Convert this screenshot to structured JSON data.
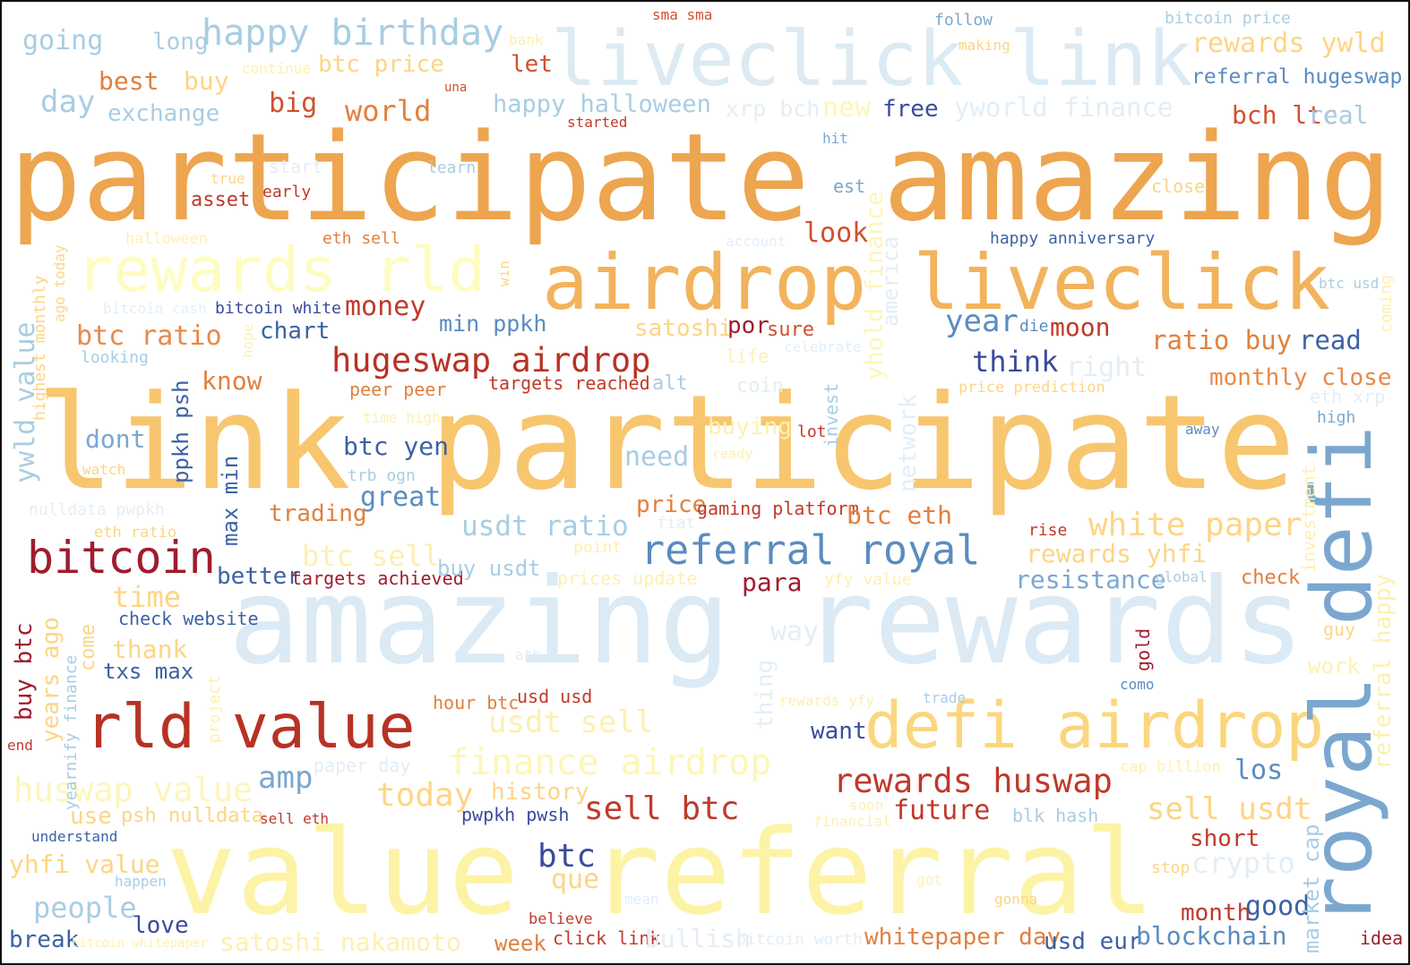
{
  "words": [
    {
      "text": "participate amazing",
      "color": "#eda54f"
    },
    {
      "text": "link participate",
      "color": "#f7c66e"
    },
    {
      "text": "amazing rewards",
      "color": "#dbeaf4"
    },
    {
      "text": "value referral",
      "color": "#fdf3a6"
    },
    {
      "text": "airdrop liveclick",
      "color": "#f2b35c"
    },
    {
      "text": "liveclick link",
      "color": "#dceaf3"
    },
    {
      "text": "rewards rld",
      "color": "#fefcc0"
    },
    {
      "text": "defi airdrop",
      "color": "#fbd67e"
    },
    {
      "text": "royal defi",
      "color": "#7ba7cf"
    },
    {
      "text": "rld value",
      "color": "#b83224"
    },
    {
      "text": "bitcoin",
      "color": "#a01c2c"
    },
    {
      "text": "hugeswap airdrop",
      "color": "#b83224"
    },
    {
      "text": "referral royal",
      "color": "#5a8cc0"
    },
    {
      "text": "rewards huswap",
      "color": "#c0392b"
    },
    {
      "text": "happy birthday",
      "color": "#a8cde3"
    },
    {
      "text": "finance airdrop",
      "color": "#fdf6b8"
    },
    {
      "text": "huswap value",
      "color": "#fdf6b8"
    },
    {
      "text": "usdt ratio",
      "color": "#a8cde3"
    },
    {
      "text": "white paper",
      "color": "#fcd585"
    },
    {
      "text": "btc ratio",
      "color": "#e58a4a"
    },
    {
      "text": "monthly close",
      "color": "#e58a4a"
    },
    {
      "text": "ratio buy",
      "color": "#e0803f"
    },
    {
      "text": "read",
      "color": "#3b62a5"
    },
    {
      "text": "rewards ywld",
      "color": "#fcd585"
    },
    {
      "text": "referral hugeswap",
      "color": "#5a8cc0"
    },
    {
      "text": "yworld finance",
      "color": "#e3eef7"
    },
    {
      "text": "going",
      "color": "#a8cde3"
    },
    {
      "text": "long",
      "color": "#a8cde3"
    },
    {
      "text": "best",
      "color": "#e0803f"
    },
    {
      "text": "buy",
      "color": "#fcd585"
    },
    {
      "text": "btc price",
      "color": "#fcd585"
    },
    {
      "text": "let",
      "color": "#d0502f"
    },
    {
      "text": "day",
      "color": "#a8cde3"
    },
    {
      "text": "exchange",
      "color": "#a8cde3"
    },
    {
      "text": "big",
      "color": "#d0502f"
    },
    {
      "text": "world",
      "color": "#e0803f"
    },
    {
      "text": "happy halloween",
      "color": "#a8cde3"
    },
    {
      "text": "xrp bch",
      "color": "#e3eef7"
    },
    {
      "text": "new",
      "color": "#fdf6b8"
    },
    {
      "text": "free",
      "color": "#3a4b9b"
    },
    {
      "text": "bch ltc",
      "color": "#d0502f"
    },
    {
      "text": "real",
      "color": "#a8cde3"
    },
    {
      "text": "sma sma",
      "color": "#d0502f"
    },
    {
      "text": "follow",
      "color": "#7ba7cf"
    },
    {
      "text": "bitcoin price",
      "color": "#a8cde3"
    },
    {
      "text": "making",
      "color": "#fcd585"
    },
    {
      "text": "bank",
      "color": "#fdf0b0"
    },
    {
      "text": "continue",
      "color": "#fdf0b0"
    },
    {
      "text": "una",
      "color": "#d0502f"
    },
    {
      "text": "started",
      "color": "#c0392b"
    },
    {
      "text": "hit",
      "color": "#7ba7cf"
    },
    {
      "text": "true",
      "color": "#fcd585"
    },
    {
      "text": "asset",
      "color": "#c0392b"
    },
    {
      "text": "start",
      "color": "#e3eef7"
    },
    {
      "text": "early",
      "color": "#c0392b"
    },
    {
      "text": "learn",
      "color": "#a8cde3"
    },
    {
      "text": "est",
      "color": "#7ba7cf"
    },
    {
      "text": "close",
      "color": "#fcd585"
    },
    {
      "text": "halloween",
      "color": "#fdf0b0"
    },
    {
      "text": "eth sell",
      "color": "#e0803f"
    },
    {
      "text": "account",
      "color": "#e3eef7"
    },
    {
      "text": "look",
      "color": "#d0502f"
    },
    {
      "text": "happy anniversary",
      "color": "#3b62a5"
    },
    {
      "text": "btc usd",
      "color": "#a8cde3"
    },
    {
      "text": "bitcoin cash",
      "color": "#e3eef7"
    },
    {
      "text": "bitcoin white",
      "color": "#3a4b9b"
    },
    {
      "text": "money",
      "color": "#c0392b"
    },
    {
      "text": "chart",
      "color": "#3b62a5"
    },
    {
      "text": "min ppkh",
      "color": "#5a8cc0"
    },
    {
      "text": "satoshi",
      "color": "#fcd585"
    },
    {
      "text": "por",
      "color": "#a01c2c"
    },
    {
      "text": "sure",
      "color": "#d0502f"
    },
    {
      "text": "celebrate",
      "color": "#e3eef7"
    },
    {
      "text": "year",
      "color": "#5a8cc0"
    },
    {
      "text": "die",
      "color": "#5a8cc0"
    },
    {
      "text": "moon",
      "color": "#c0392b"
    },
    {
      "text": "looking",
      "color": "#a8cde3"
    },
    {
      "text": "know",
      "color": "#e0803f"
    },
    {
      "text": "peer peer",
      "color": "#e0803f"
    },
    {
      "text": "targets reached",
      "color": "#c0392b"
    },
    {
      "text": "alt",
      "color": "#a8cde3"
    },
    {
      "text": "coin",
      "color": "#e3eef7"
    },
    {
      "text": "life",
      "color": "#fdf0b0"
    },
    {
      "text": "think",
      "color": "#3a4b9b"
    },
    {
      "text": "right",
      "color": "#e3eef7"
    },
    {
      "text": "price prediction",
      "color": "#fcd585"
    },
    {
      "text": "eth xrp",
      "color": "#e3eef7"
    },
    {
      "text": "high",
      "color": "#7ba7cf"
    },
    {
      "text": "away",
      "color": "#5a8cc0"
    },
    {
      "text": "time high",
      "color": "#fdf0b0"
    },
    {
      "text": "buying",
      "color": "#fdf0b0"
    },
    {
      "text": "lot",
      "color": "#c0392b"
    },
    {
      "text": "ready",
      "color": "#fdf0b0"
    },
    {
      "text": "dont",
      "color": "#7ba7cf"
    },
    {
      "text": "watch",
      "color": "#fcd585"
    },
    {
      "text": "btc yen",
      "color": "#3b62a5"
    },
    {
      "text": "trb ogn",
      "color": "#a8cde3"
    },
    {
      "text": "need",
      "color": "#a8cde3"
    },
    {
      "text": "great",
      "color": "#5a8cc0"
    },
    {
      "text": "nulldata pwpkh",
      "color": "#e3eef7"
    },
    {
      "text": "trading",
      "color": "#e0803f"
    },
    {
      "text": "price",
      "color": "#e0803f"
    },
    {
      "text": "gaming platform",
      "color": "#c0392b"
    },
    {
      "text": "btc eth",
      "color": "#e0803f"
    },
    {
      "text": "rise",
      "color": "#c0392b"
    },
    {
      "text": "fiat",
      "color": "#e3eef7"
    },
    {
      "text": "eth ratio",
      "color": "#fcd585"
    },
    {
      "text": "btc sell",
      "color": "#fdf0b0"
    },
    {
      "text": "point",
      "color": "#fdf0b0"
    },
    {
      "text": "rewards yhfi",
      "color": "#fcd585"
    },
    {
      "text": "better",
      "color": "#3b62a5"
    },
    {
      "text": "targets achieved",
      "color": "#a01c2c"
    },
    {
      "text": "buy usdt",
      "color": "#a8cde3"
    },
    {
      "text": "prices update",
      "color": "#fdf0b0"
    },
    {
      "text": "yfy value",
      "color": "#fdf0b0"
    },
    {
      "text": "para",
      "color": "#a01c2c"
    },
    {
      "text": "resistance",
      "color": "#7ba7cf"
    },
    {
      "text": "global",
      "color": "#a8cde3"
    },
    {
      "text": "check",
      "color": "#e0803f"
    },
    {
      "text": "time",
      "color": "#fcd585"
    },
    {
      "text": "check website",
      "color": "#3b62a5"
    },
    {
      "text": "thank",
      "color": "#fcd585"
    },
    {
      "text": "txs max",
      "color": "#3b62a5"
    },
    {
      "text": "way",
      "color": "#e3eef7"
    },
    {
      "text": "guy",
      "color": "#fcd585"
    },
    {
      "text": "work",
      "color": "#fdf0b0"
    },
    {
      "text": "ath",
      "color": "#e3eef7"
    },
    {
      "text": "como",
      "color": "#5a8cc0"
    },
    {
      "text": "hour btc",
      "color": "#e0803f"
    },
    {
      "text": "usd usd",
      "color": "#c0392b"
    },
    {
      "text": "rewards yfy",
      "color": "#fdf0b0"
    },
    {
      "text": "trade",
      "color": "#a8cde3"
    },
    {
      "text": "usdt sell",
      "color": "#fdf0b0"
    },
    {
      "text": "want",
      "color": "#3a4b9b"
    },
    {
      "text": "end",
      "color": "#c0392b"
    },
    {
      "text": "amp",
      "color": "#7ba7cf"
    },
    {
      "text": "paper day",
      "color": "#e3eef7"
    },
    {
      "text": "cap billion",
      "color": "#fdf0b0"
    },
    {
      "text": "los",
      "color": "#5a8cc0"
    },
    {
      "text": "today",
      "color": "#fcd585"
    },
    {
      "text": "history",
      "color": "#fcd585"
    },
    {
      "text": "future",
      "color": "#c0392b"
    },
    {
      "text": "sell btc",
      "color": "#c0392b"
    },
    {
      "text": "soon",
      "color": "#fdf0b0"
    },
    {
      "text": "sell usdt",
      "color": "#fcd585"
    },
    {
      "text": "financial",
      "color": "#fdf0b0"
    },
    {
      "text": "blk hash",
      "color": "#a8cde3"
    },
    {
      "text": "use",
      "color": "#fcd585"
    },
    {
      "text": "psh nulldata",
      "color": "#fcd585"
    },
    {
      "text": "sell eth",
      "color": "#c0392b"
    },
    {
      "text": "pwpkh pwsh",
      "color": "#3a4b9b"
    },
    {
      "text": "understand",
      "color": "#3b62a5"
    },
    {
      "text": "short",
      "color": "#c0392b"
    },
    {
      "text": "btc",
      "color": "#3a4b9b"
    },
    {
      "text": "que",
      "color": "#fcd585"
    },
    {
      "text": "yhfi value",
      "color": "#fcd585"
    },
    {
      "text": "happen",
      "color": "#a8cde3"
    },
    {
      "text": "got",
      "color": "#fdf0b0"
    },
    {
      "text": "stop",
      "color": "#fcd585"
    },
    {
      "text": "crypto",
      "color": "#e3eef7"
    },
    {
      "text": "people",
      "color": "#a8cde3"
    },
    {
      "text": "love",
      "color": "#3a4b9b"
    },
    {
      "text": "mean",
      "color": "#e3eef7"
    },
    {
      "text": "gonna",
      "color": "#fcd585"
    },
    {
      "text": "month",
      "color": "#c0392b"
    },
    {
      "text": "good",
      "color": "#3b62a5"
    },
    {
      "text": "believe",
      "color": "#c0392b"
    },
    {
      "text": "break",
      "color": "#3b62a5"
    },
    {
      "text": "bitcoin whitepaper",
      "color": "#fdf0b0"
    },
    {
      "text": "satoshi nakamoto",
      "color": "#fdf0b0"
    },
    {
      "text": "week",
      "color": "#e0803f"
    },
    {
      "text": "click link",
      "color": "#c0392b"
    },
    {
      "text": "bullish",
      "color": "#e3eef7"
    },
    {
      "text": "bitcoin worth",
      "color": "#e3eef7"
    },
    {
      "text": "whitepaper day",
      "color": "#e0803f"
    },
    {
      "text": "usd eur",
      "color": "#3b62a5"
    },
    {
      "text": "blockchain",
      "color": "#5a8cc0"
    },
    {
      "text": "idea",
      "color": "#a01c2c"
    },
    {
      "text": "ywld value",
      "color": "#a8cde3"
    },
    {
      "text": "highest monthly",
      "color": "#fcd585"
    },
    {
      "text": "ago today",
      "color": "#fcd585"
    },
    {
      "text": "hope",
      "color": "#fdf0b0"
    },
    {
      "text": "win",
      "color": "#fcd585"
    },
    {
      "text": "yhold finance",
      "color": "#fdf6b8"
    },
    {
      "text": "america",
      "color": "#e3eef7"
    },
    {
      "text": "ppkh psh",
      "color": "#3b62a5"
    },
    {
      "text": "max min",
      "color": "#3b62a5"
    },
    {
      "text": "invest",
      "color": "#a8cde3"
    },
    {
      "text": "network",
      "color": "#e3eef7"
    },
    {
      "text": "investment",
      "color": "#fdf0b0"
    },
    {
      "text": "coming",
      "color": "#fdf0b0"
    },
    {
      "text": "referral happy",
      "color": "#fdf0b0"
    },
    {
      "text": "buy btc",
      "color": "#a01c2c"
    },
    {
      "text": "years ago",
      "color": "#fcd585"
    },
    {
      "text": "yearnify finance",
      "color": "#a8cde3"
    },
    {
      "text": "come",
      "color": "#fcd585"
    },
    {
      "text": "project",
      "color": "#fdf0b0"
    },
    {
      "text": "thing",
      "color": "#e3eef7"
    },
    {
      "text": "gold",
      "color": "#a01c2c"
    },
    {
      "text": "market cap",
      "color": "#a8cde3"
    }
  ]
}
